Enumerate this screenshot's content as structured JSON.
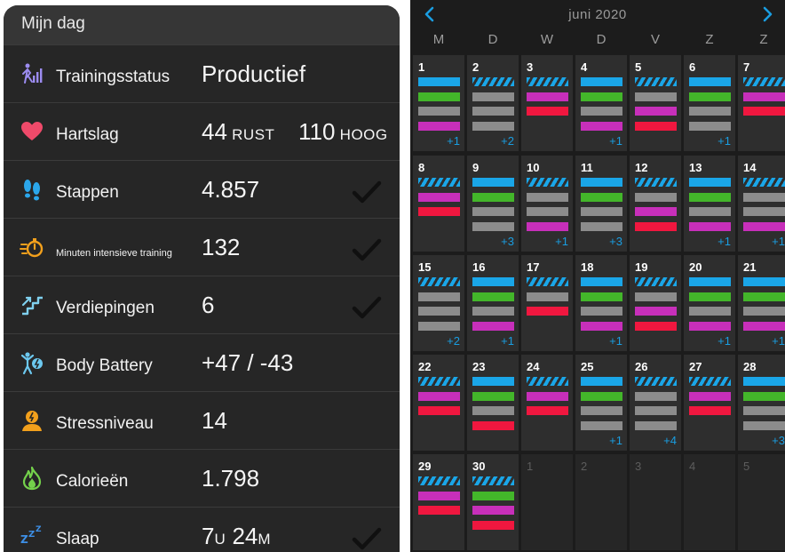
{
  "mijn_dag": {
    "title": "Mijn dag",
    "stats": [
      {
        "id": "trainingsstatus",
        "icon": "training-status-icon",
        "label": "Trainingsstatus",
        "value": "Productief",
        "unit": "",
        "value2": "",
        "unit2": "",
        "checked": false,
        "small_label": false
      },
      {
        "id": "hartslag",
        "icon": "heart-icon",
        "label": "Hartslag",
        "value": "44",
        "unit": "RUST",
        "value2": "110",
        "unit2": "HOOG",
        "checked": false,
        "small_label": false
      },
      {
        "id": "stappen",
        "icon": "footsteps-icon",
        "label": "Stappen",
        "value": "4.857",
        "unit": "",
        "value2": "",
        "unit2": "",
        "checked": true,
        "small_label": false
      },
      {
        "id": "intensieve",
        "icon": "stopwatch-icon",
        "label": "Minuten intensieve training",
        "value": "132",
        "unit": "",
        "value2": "",
        "unit2": "",
        "checked": true,
        "small_label": true
      },
      {
        "id": "verdiepingen",
        "icon": "stairs-icon",
        "label": "Verdiepingen",
        "value": "6",
        "unit": "",
        "value2": "",
        "unit2": "",
        "checked": true,
        "small_label": false
      },
      {
        "id": "body-battery",
        "icon": "body-battery-icon",
        "label": "Body Battery",
        "value": "+47 / -43",
        "unit": "",
        "value2": "",
        "unit2": "",
        "checked": false,
        "small_label": false
      },
      {
        "id": "stress",
        "icon": "stress-icon",
        "label": "Stressniveau",
        "value": "14",
        "unit": "",
        "value2": "",
        "unit2": "",
        "checked": false,
        "small_label": false
      },
      {
        "id": "calorieen",
        "icon": "flame-icon",
        "label": "Calorieën",
        "value": "1.798",
        "unit": "",
        "value2": "",
        "unit2": "",
        "checked": false,
        "small_label": false
      },
      {
        "id": "slaap",
        "icon": "sleep-icon",
        "label": "Slaap",
        "value": "7",
        "unit": "U",
        "value2": "24",
        "unit2": "M",
        "checked": true,
        "small_label": false
      }
    ]
  },
  "calendar": {
    "month_title": "juni 2020",
    "weekdays": [
      "M",
      "D",
      "W",
      "D",
      "V",
      "Z",
      "Z"
    ],
    "colors": {
      "blue": "#1aa6e8",
      "green": "#43b62a",
      "gray": "#8c8c8c",
      "magenta": "#c72fba",
      "red": "#f0173f"
    },
    "days": [
      {
        "n": "1",
        "bars": [
          "blue",
          "green",
          "gray",
          "magenta"
        ],
        "more": "+1",
        "current": true
      },
      {
        "n": "2",
        "bars": [
          "hatch",
          "gray",
          "gray",
          "gray"
        ],
        "more": "+2",
        "current": true
      },
      {
        "n": "3",
        "bars": [
          "hatch",
          "magenta",
          "red"
        ],
        "more": "",
        "current": true
      },
      {
        "n": "4",
        "bars": [
          "blue",
          "green",
          "gray",
          "magenta"
        ],
        "more": "+1",
        "current": true
      },
      {
        "n": "5",
        "bars": [
          "hatch",
          "gray",
          "magenta",
          "red"
        ],
        "more": "",
        "current": true
      },
      {
        "n": "6",
        "bars": [
          "blue",
          "green",
          "gray",
          "gray"
        ],
        "more": "+1",
        "current": true
      },
      {
        "n": "7",
        "bars": [
          "hatch",
          "magenta",
          "red"
        ],
        "more": "",
        "current": true
      },
      {
        "n": "8",
        "bars": [
          "hatch",
          "magenta",
          "red"
        ],
        "more": "",
        "current": true
      },
      {
        "n": "9",
        "bars": [
          "blue",
          "green",
          "gray",
          "gray"
        ],
        "more": "+3",
        "current": true
      },
      {
        "n": "10",
        "bars": [
          "hatch",
          "gray",
          "gray",
          "magenta"
        ],
        "more": "+1",
        "current": true
      },
      {
        "n": "11",
        "bars": [
          "blue",
          "green",
          "gray",
          "gray"
        ],
        "more": "+3",
        "current": true
      },
      {
        "n": "12",
        "bars": [
          "hatch",
          "gray",
          "magenta",
          "red"
        ],
        "more": "",
        "current": true
      },
      {
        "n": "13",
        "bars": [
          "blue",
          "green",
          "gray",
          "magenta"
        ],
        "more": "+1",
        "current": true
      },
      {
        "n": "14",
        "bars": [
          "hatch",
          "gray",
          "gray",
          "magenta"
        ],
        "more": "+1",
        "current": true
      },
      {
        "n": "15",
        "bars": [
          "hatch",
          "gray",
          "gray",
          "gray"
        ],
        "more": "+2",
        "current": true
      },
      {
        "n": "16",
        "bars": [
          "blue",
          "green",
          "gray",
          "magenta"
        ],
        "more": "+1",
        "current": true
      },
      {
        "n": "17",
        "bars": [
          "hatch",
          "gray",
          "red"
        ],
        "more": "",
        "current": true
      },
      {
        "n": "18",
        "bars": [
          "blue",
          "green",
          "gray",
          "magenta"
        ],
        "more": "+1",
        "current": true
      },
      {
        "n": "19",
        "bars": [
          "hatch",
          "gray",
          "magenta",
          "red"
        ],
        "more": "",
        "current": true
      },
      {
        "n": "20",
        "bars": [
          "blue",
          "green",
          "gray",
          "magenta"
        ],
        "more": "+1",
        "current": true
      },
      {
        "n": "21",
        "bars": [
          "blue",
          "green",
          "gray",
          "magenta"
        ],
        "more": "+1",
        "current": true
      },
      {
        "n": "22",
        "bars": [
          "hatch",
          "magenta",
          "red"
        ],
        "more": "",
        "current": true
      },
      {
        "n": "23",
        "bars": [
          "blue",
          "green",
          "gray",
          "red"
        ],
        "more": "",
        "current": true
      },
      {
        "n": "24",
        "bars": [
          "hatch",
          "magenta",
          "red"
        ],
        "more": "",
        "current": true
      },
      {
        "n": "25",
        "bars": [
          "blue",
          "green",
          "gray",
          "gray"
        ],
        "more": "+1",
        "current": true
      },
      {
        "n": "26",
        "bars": [
          "hatch",
          "gray",
          "gray",
          "gray"
        ],
        "more": "+4",
        "current": true
      },
      {
        "n": "27",
        "bars": [
          "hatch",
          "magenta",
          "red"
        ],
        "more": "",
        "current": true
      },
      {
        "n": "28",
        "bars": [
          "blue",
          "green",
          "gray",
          "gray"
        ],
        "more": "+3",
        "current": true
      },
      {
        "n": "29",
        "bars": [
          "hatch",
          "magenta",
          "red"
        ],
        "more": "",
        "current": true
      },
      {
        "n": "30",
        "bars": [
          "hatch",
          "green",
          "magenta",
          "red"
        ],
        "more": "",
        "current": true
      },
      {
        "n": "1",
        "bars": [],
        "more": "",
        "current": false
      },
      {
        "n": "2",
        "bars": [],
        "more": "",
        "current": false
      },
      {
        "n": "3",
        "bars": [],
        "more": "",
        "current": false
      },
      {
        "n": "4",
        "bars": [],
        "more": "",
        "current": false
      },
      {
        "n": "5",
        "bars": [],
        "more": "",
        "current": false
      }
    ]
  }
}
